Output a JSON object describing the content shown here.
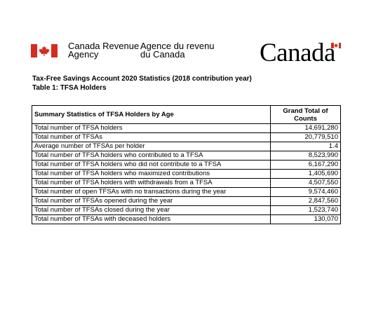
{
  "header": {
    "agency_en_line1": "Canada Revenue",
    "agency_en_line2": "Agency",
    "agency_fr_line1": "Agence du revenu",
    "agency_fr_line2": "du Canada",
    "wordmark": "Canada",
    "flag_red": "#d52b1e"
  },
  "document": {
    "title": "Tax-Free Savings Account 2020 Statistics (2018 contribution year)",
    "subtitle": "Table 1: TFSA Holders"
  },
  "table": {
    "headers": [
      "Summary Statistics of TFSA Holders by Age",
      "Grand Total of Counts"
    ],
    "rows": [
      {
        "label": "Total number of TFSA holders",
        "value": "14,691,280"
      },
      {
        "label": "Total number of TFSAs",
        "value": "20,779,510"
      },
      {
        "label": "Average number of TFSAs per holder",
        "value": "1.4"
      },
      {
        "label": "Total number of TFSA holders who contributed to a TFSA",
        "value": "8,523,990"
      },
      {
        "label": "Total number of TFSA holders who did not contribute to a TFSA",
        "value": "6,167,290"
      },
      {
        "label": "Total number of TFSA holders who maximized contributions",
        "value": "1,405,690"
      },
      {
        "label": "Total number of TFSA holders with withdrawals from a TFSA",
        "value": "4,507,550"
      },
      {
        "label": "Total number of open TFSAs with no transactions during the year",
        "value": "9,574,460"
      },
      {
        "label": "Total number of TFSAs opened during the year",
        "value": "2,847,560"
      },
      {
        "label": "Total number of TFSAs closed during the year",
        "value": "1,523,740"
      },
      {
        "label": "Total number of TFSAs with deceased holders",
        "value": "130,070"
      }
    ]
  }
}
